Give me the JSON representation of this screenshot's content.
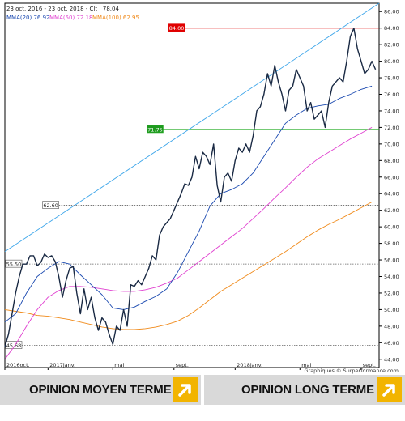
{
  "header": {
    "period": "23 oct. 2016 - 23 oct. 2018 - Clt : 78.04",
    "legend": [
      {
        "label": "MMA(20)",
        "value": "76.92",
        "color": "#1a49b0"
      },
      {
        "label": "MMA(50)",
        "value": "72.18",
        "color": "#e040d0"
      },
      {
        "label": "MMA(100)",
        "value": "62.95",
        "color": "#f08a1a"
      }
    ]
  },
  "chart_data": {
    "type": "line",
    "ylim": [
      43,
      87
    ],
    "xlim": [
      0,
      104
    ],
    "yticks": [
      "44.00",
      "46.00",
      "48.00",
      "50.00",
      "52.00",
      "54.00",
      "56.00",
      "58.00",
      "60.00",
      "62.00",
      "64.00",
      "66.00",
      "68.00",
      "70.00",
      "72.00",
      "74.00",
      "76.00",
      "78.00",
      "80.00",
      "82.00",
      "84.00",
      "86.00"
    ],
    "ytick_values": [
      44,
      46,
      48,
      50,
      52,
      54,
      56,
      58,
      60,
      62,
      64,
      66,
      68,
      70,
      72,
      74,
      76,
      78,
      80,
      82,
      84,
      86
    ],
    "xticks": [
      {
        "label": "2016oct.",
        "x": 0
      },
      {
        "label": "2017janv.",
        "x": 12
      },
      {
        "label": "mai",
        "x": 30
      },
      {
        "label": "sept.",
        "x": 47
      },
      {
        "label": "2018janv.",
        "x": 64
      },
      {
        "label": "mai",
        "x": 82
      },
      {
        "label": "sept.",
        "x": 99
      }
    ],
    "series": [
      {
        "key": "price",
        "color": "#1a2a44",
        "x": [
          0,
          1,
          2,
          3,
          4,
          5,
          6,
          7,
          8,
          9,
          10,
          11,
          12,
          13,
          14,
          15,
          16,
          17,
          18,
          19,
          20,
          21,
          22,
          23,
          24,
          25,
          26,
          27,
          28,
          29,
          30,
          31,
          32,
          33,
          34,
          35,
          36,
          37,
          38,
          39,
          40,
          41,
          42,
          43,
          44,
          45,
          46,
          47,
          48,
          49,
          50,
          51,
          52,
          53,
          54,
          55,
          56,
          57,
          58,
          59,
          60,
          61,
          62,
          63,
          64,
          65,
          66,
          67,
          68,
          69,
          70,
          71,
          72,
          73,
          74,
          75,
          76,
          77,
          78,
          79,
          80,
          81,
          82,
          83,
          84,
          85,
          86,
          87,
          88,
          89,
          90,
          91,
          92,
          93,
          94,
          95,
          96,
          97,
          98,
          99,
          100,
          101,
          102,
          103
        ],
        "values": [
          45.5,
          47,
          49.5,
          52,
          54,
          55.5,
          55.5,
          56.5,
          56.5,
          55.3,
          55.7,
          56.7,
          56.3,
          56.5,
          55.8,
          54,
          51.5,
          53.5,
          55,
          55.2,
          52,
          49.5,
          52.5,
          50,
          51.5,
          49,
          47.5,
          49,
          48.5,
          47,
          45.8,
          48,
          47.5,
          50,
          48,
          53,
          52.8,
          53.5,
          53,
          54,
          55,
          56.5,
          56,
          59,
          60,
          60.5,
          61,
          62,
          63,
          64,
          65.2,
          65,
          66,
          68.5,
          67,
          69,
          68.5,
          67.5,
          70,
          65,
          63,
          66,
          66.5,
          65.5,
          68,
          69.5,
          69,
          70,
          69,
          71,
          74,
          74.5,
          76,
          78.5,
          77,
          79.5,
          77.5,
          76,
          74,
          76.5,
          77,
          79,
          78,
          77,
          74,
          75,
          73,
          73.5,
          74,
          72,
          75,
          77,
          77.5,
          78,
          77.5,
          80,
          83,
          84,
          81.5,
          80,
          78.5,
          79,
          80,
          79
        ],
        "label": "",
        "name": ""
      },
      {
        "key": "mma20",
        "color": "#1a49b0",
        "x": [
          0,
          3,
          6,
          9,
          12,
          15,
          18,
          21,
          24,
          27,
          30,
          33,
          36,
          39,
          42,
          45,
          48,
          51,
          54,
          57,
          60,
          63,
          66,
          69,
          72,
          75,
          78,
          81,
          84,
          87,
          90,
          93,
          96,
          99,
          102
        ],
        "values": [
          48.5,
          49.5,
          52,
          54,
          55,
          55.8,
          55.5,
          54.2,
          53,
          51.8,
          50.2,
          50,
          50.3,
          51,
          51.6,
          52.5,
          54.5,
          57,
          59.5,
          62.5,
          64,
          64.5,
          65.2,
          66.5,
          68.5,
          70.5,
          72.5,
          73.5,
          74.3,
          74.6,
          74.8,
          75.5,
          76,
          76.6,
          77
        ]
      },
      {
        "key": "mma50",
        "color": "#e040d0",
        "x": [
          0,
          3,
          6,
          9,
          12,
          15,
          18,
          21,
          24,
          27,
          30,
          33,
          36,
          39,
          42,
          45,
          48,
          51,
          54,
          57,
          60,
          63,
          66,
          69,
          72,
          75,
          78,
          81,
          84,
          87,
          90,
          93,
          96,
          99,
          102
        ],
        "values": [
          44,
          45.8,
          48,
          50,
          51.5,
          52.3,
          52.8,
          52.8,
          52.7,
          52.5,
          52.3,
          52.2,
          52.2,
          52.4,
          52.7,
          53.2,
          53.8,
          54.8,
          55.8,
          56.8,
          57.8,
          58.8,
          59.8,
          61,
          62.2,
          63.5,
          64.7,
          66,
          67.2,
          68.2,
          69,
          69.8,
          70.6,
          71.3,
          72
        ]
      },
      {
        "key": "mma100",
        "color": "#f08a1a",
        "x": [
          0,
          3,
          6,
          9,
          12,
          15,
          18,
          21,
          24,
          27,
          30,
          33,
          36,
          39,
          42,
          45,
          48,
          51,
          54,
          57,
          60,
          63,
          66,
          69,
          72,
          75,
          78,
          81,
          84,
          87,
          90,
          93,
          96,
          99,
          102
        ],
        "values": [
          50,
          49.8,
          49.6,
          49.3,
          49.2,
          49,
          48.8,
          48.5,
          48.2,
          47.9,
          47.7,
          47.6,
          47.6,
          47.7,
          47.9,
          48.2,
          48.6,
          49.3,
          50.2,
          51.2,
          52.2,
          53,
          53.8,
          54.6,
          55.4,
          56.2,
          57,
          57.9,
          58.8,
          59.6,
          60.3,
          60.9,
          61.6,
          62.3,
          63
        ]
      },
      {
        "key": "channel",
        "color": "#3ea6ea",
        "x": [
          0,
          104
        ],
        "values": [
          57,
          87
        ]
      }
    ],
    "hlines": [
      {
        "value": 84,
        "label": "84.00",
        "color": "#e00000",
        "style": "solid",
        "x_start": 50,
        "label_bg": "#e00000",
        "label_fg": "#ffffff"
      },
      {
        "value": 71.75,
        "label": "71.75",
        "color": "#22aa22",
        "style": "solid",
        "x_start": 44,
        "label_bg": "#1f9a1f",
        "label_fg": "#ffffff"
      },
      {
        "value": 62.6,
        "label": "62.60",
        "color": "#666666",
        "style": "dotted",
        "x_start": 15,
        "label_bg": "#ffffff",
        "label_fg": "#222222"
      },
      {
        "value": 55.5,
        "label": "55.50",
        "color": "#666666",
        "style": "dotted",
        "x_start": 0,
        "label_bg": "#ffffff",
        "label_fg": "#222222"
      },
      {
        "value": 45.68,
        "label": "45.68",
        "color": "#666666",
        "style": "dotted",
        "x_start": 0,
        "label_bg": "#ffffff",
        "label_fg": "#222222"
      }
    ],
    "credit": "Graphiques © Surperformance.com"
  },
  "footer": {
    "left": {
      "label": "OPINION MOYEN TERME",
      "icon": "arrow-up-right-icon"
    },
    "right": {
      "label": "OPINION LONG TERME",
      "icon": "arrow-up-right-icon"
    }
  }
}
